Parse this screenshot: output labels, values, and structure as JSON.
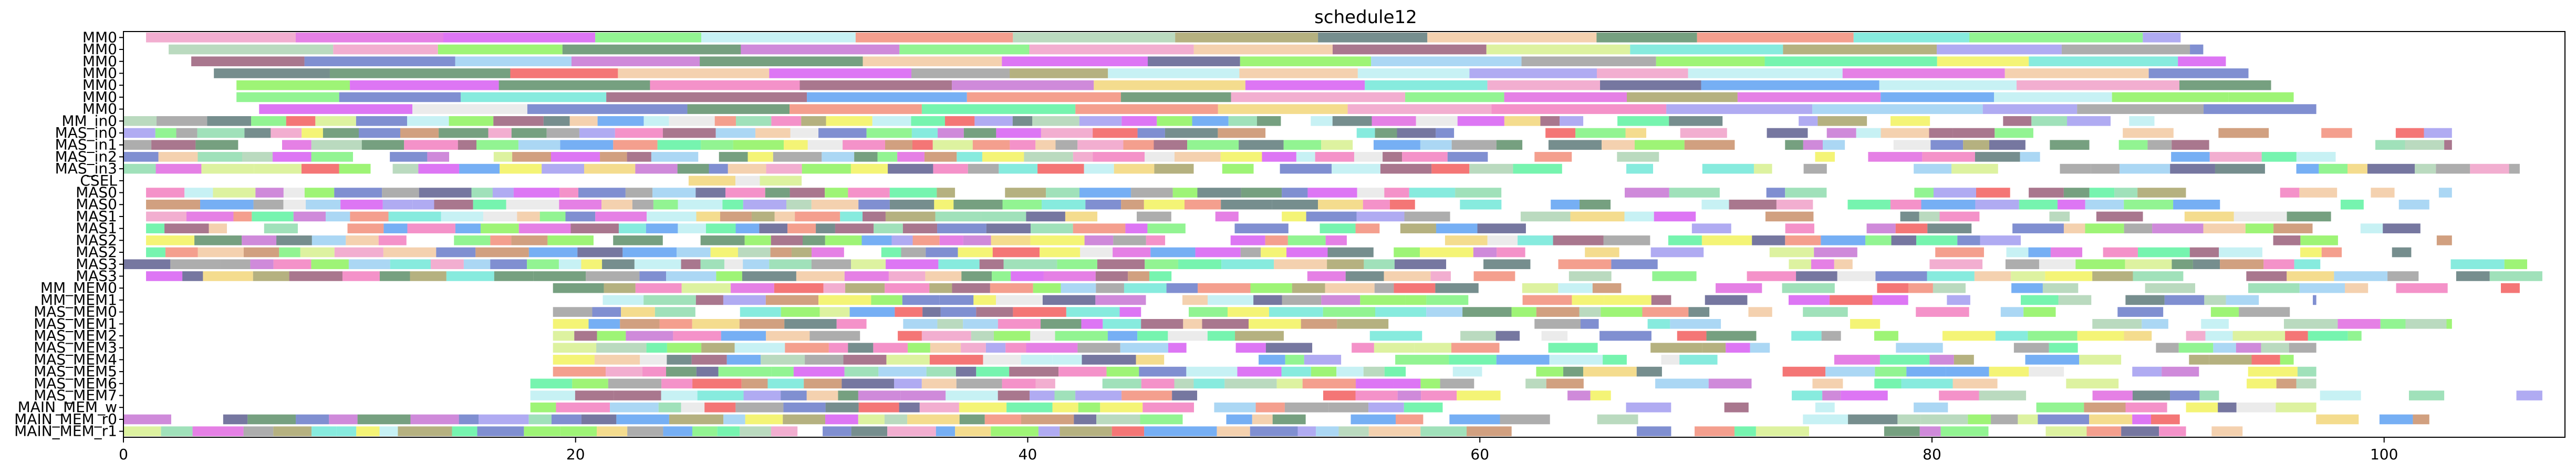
{
  "chart_data": {
    "type": "gantt",
    "title": "schedule12",
    "xlabel": "",
    "ylabel": "",
    "xlim": [
      0,
      108
    ],
    "xticks": [
      0,
      20,
      40,
      60,
      80,
      100
    ],
    "grid": false,
    "rows": [
      "MM0",
      "MM0",
      "MM0",
      "MM0",
      "MM0",
      "MM0",
      "MM0",
      "MM_in0",
      "MAS_in0",
      "MAS_in1",
      "MAS_in2",
      "MAS_in3",
      "CSEL",
      "MAS0",
      "MAS0",
      "MAS1",
      "MAS1",
      "MAS2",
      "MAS2",
      "MAS3",
      "MAS3",
      "MM_MEM0",
      "MM_MEM1",
      "MAS_MEM0",
      "MAS_MEM1",
      "MAS_MEM2",
      "MAS_MEM3",
      "MAS_MEM4",
      "MAS_MEM5",
      "MAS_MEM6",
      "MAS_MEM7",
      "MAIN_MEM_w",
      "MAIN_MEM_r0",
      "MAIN_MEM_r1"
    ],
    "row_ranges": [
      [
        1,
        91
      ],
      [
        2,
        92
      ],
      [
        3,
        93
      ],
      [
        4,
        94
      ],
      [
        5,
        95
      ],
      [
        5,
        96
      ],
      [
        6,
        97
      ],
      [
        0,
        96
      ],
      [
        0,
        103
      ],
      [
        0,
        103
      ],
      [
        0,
        98
      ],
      [
        0,
        106
      ],
      [
        25,
        30
      ],
      [
        1,
        103
      ],
      [
        1,
        102
      ],
      [
        1,
        103
      ],
      [
        1,
        103
      ],
      [
        1,
        103
      ],
      [
        1,
        103
      ],
      [
        0,
        108
      ],
      [
        1,
        107
      ],
      [
        19,
        106
      ],
      [
        19,
        97
      ],
      [
        19,
        97
      ],
      [
        19,
        103
      ],
      [
        19,
        99
      ],
      [
        19,
        97
      ],
      [
        19,
        96
      ],
      [
        19,
        97
      ],
      [
        18,
        97
      ],
      [
        18,
        107
      ],
      [
        18,
        97
      ],
      [
        0,
        102
      ],
      [
        0,
        95
      ]
    ],
    "palette": [
      "#6a7bc9",
      "#8fdcae",
      "#d7f08f",
      "#9a5f7a",
      "#e7e7e7",
      "#aed4b4",
      "#c775d4",
      "#a8a36a",
      "#9cd0f2",
      "#f0a0c8",
      "#f28e7a",
      "#72e7d8",
      "#a29cf0",
      "#f2d67a",
      "#5e8f6a",
      "#8df25e",
      "#5e5f8f",
      "#f25e5e",
      "#5ef2a1",
      "#f2f25e",
      "#d75ef2",
      "#5ea1f2",
      "#c98f6a",
      "#5e7a7a",
      "#bdeff2",
      "#f2c9a1",
      "#7ff27f",
      "#f27fbf",
      "#9f9f9f",
      "#e06ae0"
    ]
  }
}
